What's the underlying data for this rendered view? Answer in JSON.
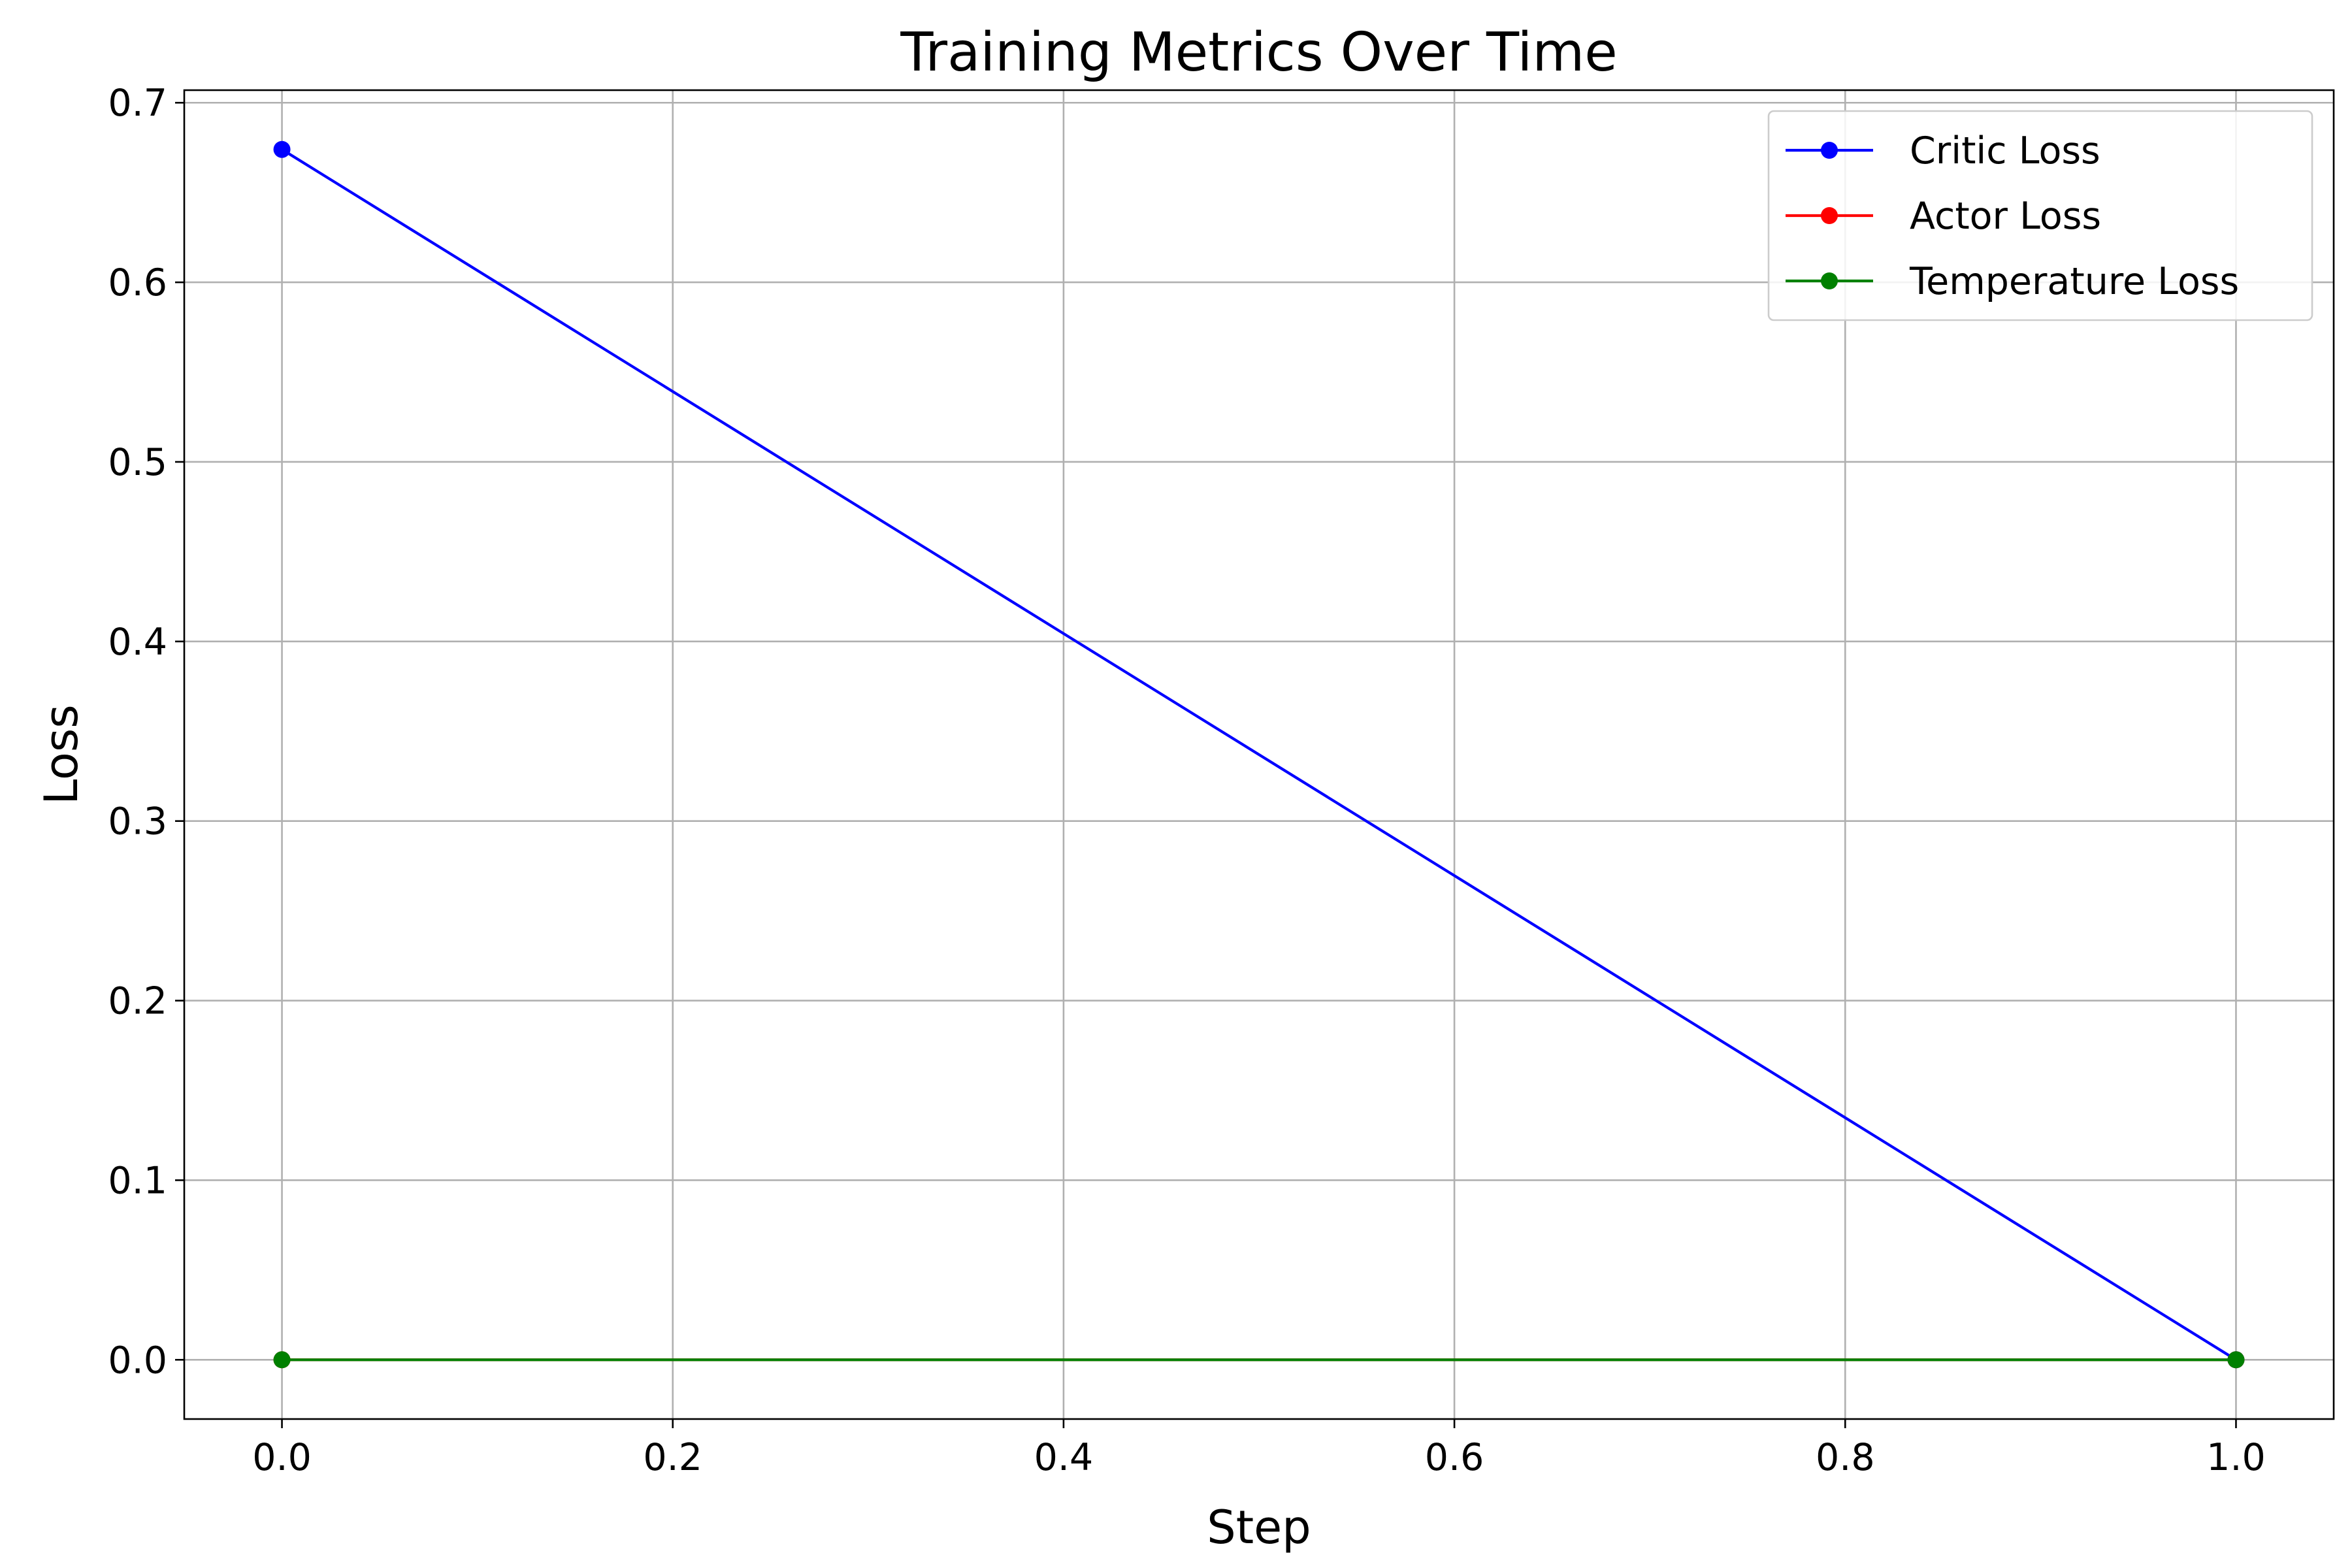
{
  "chart_data": {
    "type": "line",
    "title": "Training Metrics Over Time",
    "xlabel": "Step",
    "ylabel": "Loss",
    "xlim": [
      -0.05,
      1.05
    ],
    "ylim": [
      -0.033,
      0.707
    ],
    "xticks": [
      0.0,
      0.2,
      0.4,
      0.6,
      0.8,
      1.0
    ],
    "xtick_labels": [
      "0.0",
      "0.2",
      "0.4",
      "0.6",
      "0.8",
      "1.0"
    ],
    "yticks": [
      0.0,
      0.1,
      0.2,
      0.3,
      0.4,
      0.5,
      0.6,
      0.7
    ],
    "ytick_labels": [
      "0.0",
      "0.1",
      "0.2",
      "0.3",
      "0.4",
      "0.5",
      "0.6",
      "0.7"
    ],
    "grid": true,
    "legend_position": "top-right",
    "x": [
      0,
      1
    ],
    "series": [
      {
        "name": "Critic Loss",
        "values": [
          0.674,
          0.0
        ],
        "color": "#0000ff",
        "marker": "circle"
      },
      {
        "name": "Actor Loss",
        "values": [
          0.0,
          0.0
        ],
        "color": "#ff0000",
        "marker": "circle"
      },
      {
        "name": "Temperature Loss",
        "values": [
          0.0,
          0.0
        ],
        "color": "#008000",
        "marker": "circle"
      }
    ]
  }
}
